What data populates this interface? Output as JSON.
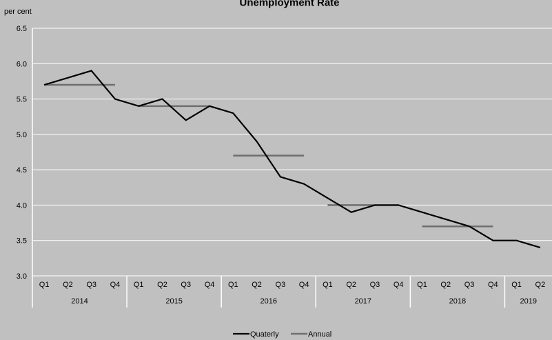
{
  "chart_data": {
    "type": "line",
    "title": "Unemployment Rate",
    "ylabel": "per cent",
    "xlabel": "",
    "ylim": [
      3.0,
      6.5
    ],
    "yticks": [
      "3.0",
      "3.5",
      "4.0",
      "4.5",
      "5.0",
      "5.5",
      "6.0",
      "6.5"
    ],
    "grid": true,
    "legend_position": "bottom",
    "quarters": [
      "Q1",
      "Q2",
      "Q3",
      "Q4",
      "Q1",
      "Q2",
      "Q3",
      "Q4",
      "Q1",
      "Q2",
      "Q3",
      "Q4",
      "Q1",
      "Q2",
      "Q3",
      "Q4",
      "Q1",
      "Q2",
      "Q3",
      "Q4",
      "Q1",
      "Q2"
    ],
    "years": [
      {
        "label": "2014",
        "quarter_count": 4
      },
      {
        "label": "2015",
        "quarter_count": 4
      },
      {
        "label": "2016",
        "quarter_count": 4
      },
      {
        "label": "2017",
        "quarter_count": 4
      },
      {
        "label": "2018",
        "quarter_count": 4
      },
      {
        "label": "2019",
        "quarter_count": 2
      }
    ],
    "series": [
      {
        "name": "Quaterly",
        "color": "#000000",
        "values": [
          5.7,
          5.8,
          5.9,
          5.5,
          5.4,
          5.5,
          5.2,
          5.4,
          5.3,
          4.9,
          4.4,
          4.3,
          4.1,
          3.9,
          4.0,
          4.0,
          3.9,
          3.8,
          3.7,
          3.5,
          3.5,
          3.4
        ]
      },
      {
        "name": "Annual",
        "color": "#6e6e6e",
        "values": [
          5.7,
          5.4,
          4.7,
          4.0,
          3.7
        ]
      }
    ]
  },
  "colors": {
    "background": "#c0c0c0",
    "gridline": "#ffffff",
    "quarterly": "#000000",
    "annual": "#6e6e6e"
  }
}
